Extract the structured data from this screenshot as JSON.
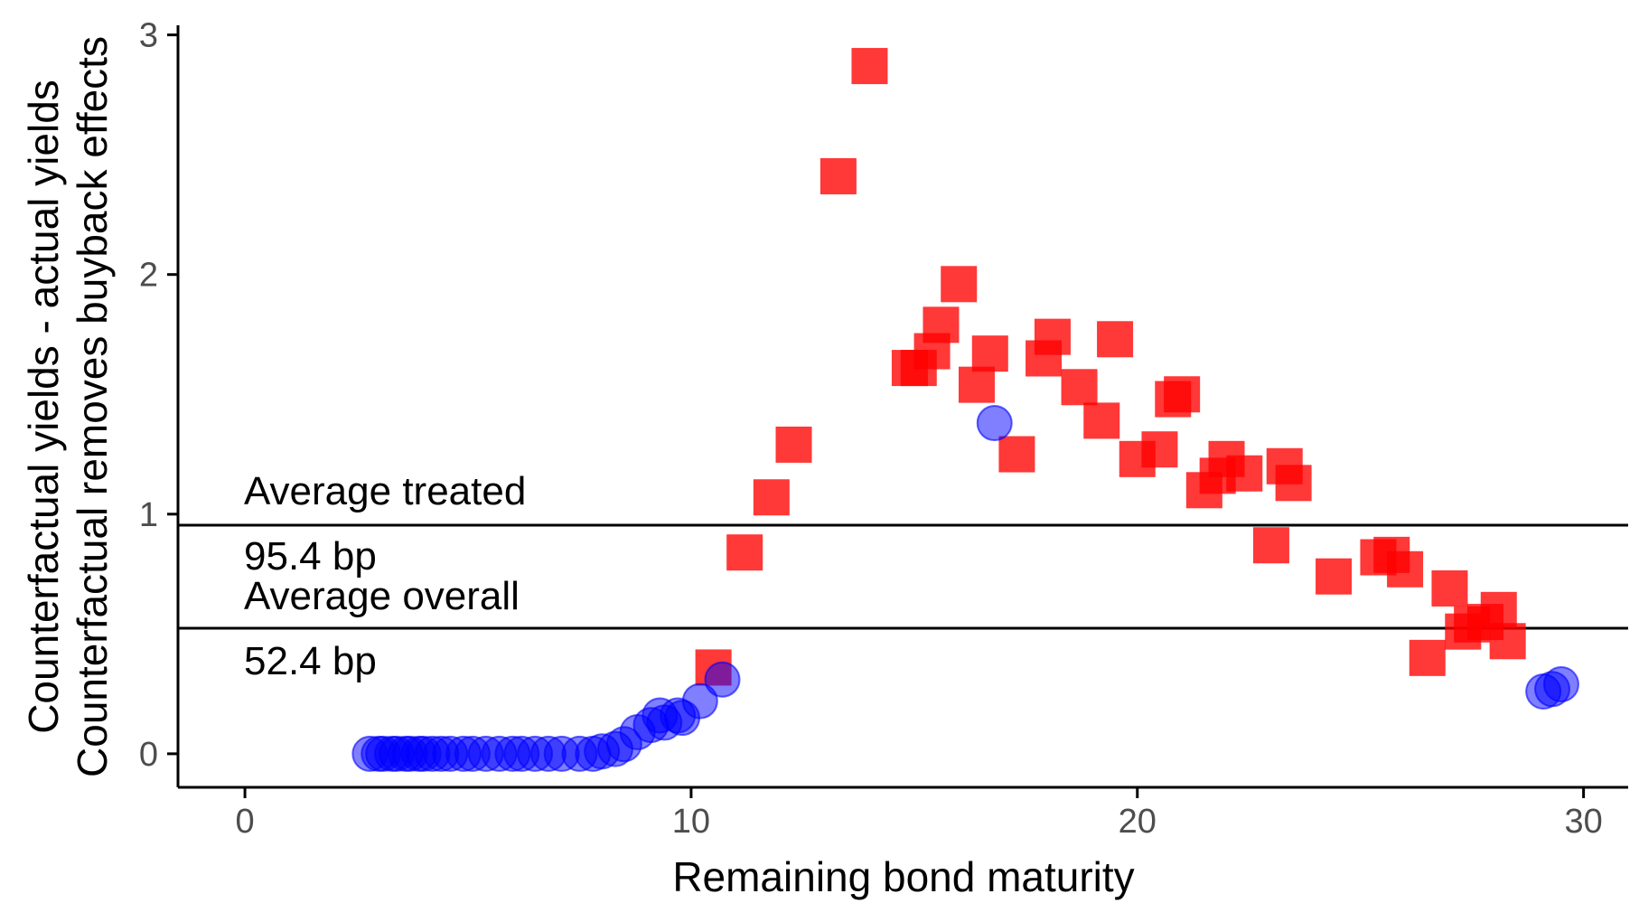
{
  "chart_data": {
    "type": "scatter",
    "xlabel": "Remaining bond maturity",
    "ylabel_lines": [
      "Counterfactual yields - actual yields",
      "Counterfactual removes buyback effects"
    ],
    "xlim": [
      -1.5,
      31
    ],
    "ylim": [
      -0.14,
      3.04
    ],
    "x_ticks": [
      0,
      10,
      20,
      30
    ],
    "y_ticks": [
      0,
      1,
      2,
      3
    ],
    "x_tick_labels": [
      "0",
      "10",
      "20",
      "30"
    ],
    "y_tick_labels": [
      "0",
      "1",
      "2",
      "3"
    ],
    "grid": false,
    "legend": "none",
    "hlines": [
      {
        "y": 0.954,
        "label_top": "Average treated",
        "label_bottom": "95.4 bp"
      },
      {
        "y": 0.524,
        "label_top": "Average overall",
        "label_bottom": "52.4 bp"
      }
    ],
    "series": [
      {
        "marker": "square",
        "color": "#ff0000",
        "points": [
          [
            10.5,
            0.36
          ],
          [
            11.2,
            0.84
          ],
          [
            11.8,
            1.07
          ],
          [
            12.3,
            1.29
          ],
          [
            13.3,
            2.41
          ],
          [
            14.0,
            2.87
          ],
          [
            14.9,
            1.61
          ],
          [
            15.1,
            1.61
          ],
          [
            15.4,
            1.68
          ],
          [
            15.6,
            1.79
          ],
          [
            16.0,
            1.96
          ],
          [
            16.4,
            1.54
          ],
          [
            16.7,
            1.67
          ],
          [
            17.3,
            1.25
          ],
          [
            17.9,
            1.65
          ],
          [
            18.1,
            1.74
          ],
          [
            18.7,
            1.53
          ],
          [
            19.2,
            1.39
          ],
          [
            19.5,
            1.73
          ],
          [
            20.0,
            1.23
          ],
          [
            20.5,
            1.27
          ],
          [
            20.8,
            1.48
          ],
          [
            21.0,
            1.5
          ],
          [
            21.5,
            1.1
          ],
          [
            21.8,
            1.16
          ],
          [
            22.0,
            1.23
          ],
          [
            22.4,
            1.17
          ],
          [
            23.0,
            0.87
          ],
          [
            23.3,
            1.2
          ],
          [
            23.5,
            1.13
          ],
          [
            24.4,
            0.74
          ],
          [
            25.4,
            0.82
          ],
          [
            25.7,
            0.83
          ],
          [
            26.0,
            0.77
          ],
          [
            26.5,
            0.4
          ],
          [
            27.0,
            0.69
          ],
          [
            27.3,
            0.51
          ],
          [
            27.5,
            0.54
          ],
          [
            27.8,
            0.55
          ],
          [
            28.1,
            0.6
          ],
          [
            28.3,
            0.47
          ]
        ]
      },
      {
        "marker": "circle",
        "color": "#0000ff",
        "points": [
          [
            2.8,
            0.0
          ],
          [
            3.0,
            0.0
          ],
          [
            3.1,
            0.0
          ],
          [
            3.3,
            0.0
          ],
          [
            3.4,
            0.0
          ],
          [
            3.6,
            0.0
          ],
          [
            3.7,
            0.0
          ],
          [
            3.9,
            0.0
          ],
          [
            4.0,
            0.0
          ],
          [
            4.2,
            0.0
          ],
          [
            4.4,
            0.0
          ],
          [
            4.6,
            0.0
          ],
          [
            4.9,
            0.0
          ],
          [
            5.1,
            0.0
          ],
          [
            5.4,
            0.0
          ],
          [
            5.7,
            0.0
          ],
          [
            6.0,
            0.0
          ],
          [
            6.2,
            0.0
          ],
          [
            6.5,
            0.0
          ],
          [
            6.8,
            0.0
          ],
          [
            7.1,
            0.0
          ],
          [
            7.5,
            0.0
          ],
          [
            7.8,
            0.0
          ],
          [
            8.0,
            0.01
          ],
          [
            8.3,
            0.02
          ],
          [
            8.5,
            0.04
          ],
          [
            8.8,
            0.09
          ],
          [
            9.1,
            0.12
          ],
          [
            9.3,
            0.16
          ],
          [
            9.4,
            0.13
          ],
          [
            9.7,
            0.16
          ],
          [
            9.8,
            0.15
          ],
          [
            10.2,
            0.22
          ],
          [
            10.7,
            0.31
          ],
          [
            16.8,
            1.38
          ],
          [
            29.1,
            0.26
          ],
          [
            29.3,
            0.27
          ],
          [
            29.5,
            0.29
          ]
        ]
      }
    ]
  }
}
